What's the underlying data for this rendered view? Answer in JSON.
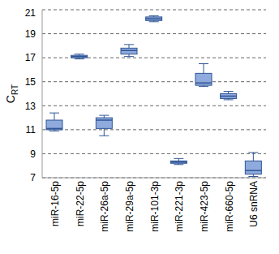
{
  "chart_data": {
    "type": "box",
    "y_label": "CRT",
    "categories": [
      "miR-16-5p",
      "miR-22-5p",
      "miR-26a-5p",
      "miR-29a-5p",
      "miR-101-3p",
      "miR-221-3p",
      "miR-423-5p",
      "miR-660-5p",
      "U6 snRNA"
    ],
    "min": [
      10.9,
      16.9,
      10.5,
      17.1,
      20.0,
      8.1,
      14.6,
      13.5,
      7.1
    ],
    "q1": [
      11.0,
      17.0,
      11.1,
      17.3,
      20.1,
      8.2,
      14.7,
      13.6,
      7.3
    ],
    "median": [
      11.1,
      17.1,
      11.8,
      17.6,
      20.25,
      8.3,
      14.9,
      13.8,
      7.6
    ],
    "q3": [
      11.8,
      17.2,
      12.0,
      17.8,
      20.4,
      8.4,
      15.7,
      14.0,
      8.4
    ],
    "max": [
      12.4,
      17.3,
      12.2,
      18.1,
      20.5,
      8.6,
      16.5,
      14.2,
      9.1
    ],
    "color": "#8faadc",
    "ylim": [
      7,
      21
    ],
    "yticks": [
      7,
      9,
      11,
      13,
      15,
      17,
      19,
      21
    ],
    "grid": true
  }
}
